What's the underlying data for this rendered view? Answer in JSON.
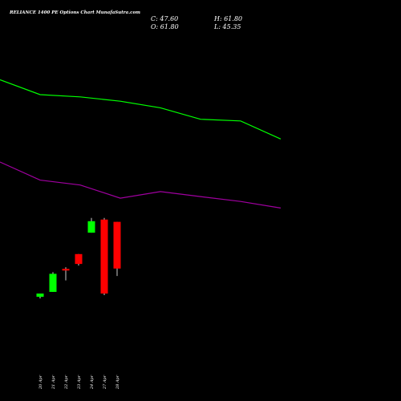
{
  "header": {
    "title": "RELIANCE 1400  PE Options  Chart MunafaSutra.com",
    "close_text": "C: 47.60",
    "open_text": "O: 61.80",
    "high_text": "H: 61.80",
    "low_text": "L: 45.35"
  },
  "colors": {
    "background": "#000000",
    "up": "#00ff00",
    "down": "#ff0000",
    "upper_band": "#00ff00",
    "lower_band": "#a000a0",
    "text": "#ffffff",
    "wick": "#ffffff"
  },
  "chart_data": {
    "type": "candlestick",
    "title": "RELIANCE 1400  PE Options  Chart MunafaSutra.com",
    "categories": [
      "20 Apr",
      "21 Apr",
      "22 Apr",
      "23 Apr",
      "24 Apr",
      "27 Apr",
      "28 Apr"
    ],
    "candles": [
      {
        "date": "20 Apr",
        "open": 39.0,
        "high": 40.0,
        "low": 38.5,
        "close": 40.0,
        "dir": "up"
      },
      {
        "date": "21 Apr",
        "open": 40.5,
        "high": 46.5,
        "low": 40.5,
        "close": 46.0,
        "dir": "up"
      },
      {
        "date": "22 Apr",
        "open": 47.5,
        "high": 48.0,
        "low": 44.0,
        "close": 47.0,
        "dir": "down"
      },
      {
        "date": "23 Apr",
        "open": 52.0,
        "high": 52.0,
        "low": 48.5,
        "close": 49.0,
        "dir": "down"
      },
      {
        "date": "24 Apr",
        "open": 58.5,
        "high": 63.0,
        "low": 58.5,
        "close": 62.0,
        "dir": "up"
      },
      {
        "date": "27 Apr",
        "open": 62.5,
        "high": 63.0,
        "low": 39.5,
        "close": 40.0,
        "dir": "down"
      },
      {
        "date": "28 Apr",
        "open": 61.8,
        "high": 61.8,
        "low": 45.35,
        "close": 47.6,
        "dir": "down"
      }
    ],
    "bands": [
      {
        "name": "upper",
        "x_index": [
          -3,
          -1,
          0,
          1,
          2,
          3,
          4,
          5,
          6
        ],
        "values": [
          105,
          105,
          100.5,
          99.8,
          98.5,
          96.5,
          93,
          92.5,
          87
        ]
      },
      {
        "name": "lower",
        "x_index": [
          -3,
          -1,
          0,
          1,
          2,
          3,
          4,
          5,
          6
        ],
        "values": [
          80,
          80,
          74.5,
          73,
          69,
          71,
          69.5,
          68,
          66
        ]
      }
    ],
    "ylim": [
      20,
      130
    ],
    "grid": false,
    "legend": "none"
  }
}
